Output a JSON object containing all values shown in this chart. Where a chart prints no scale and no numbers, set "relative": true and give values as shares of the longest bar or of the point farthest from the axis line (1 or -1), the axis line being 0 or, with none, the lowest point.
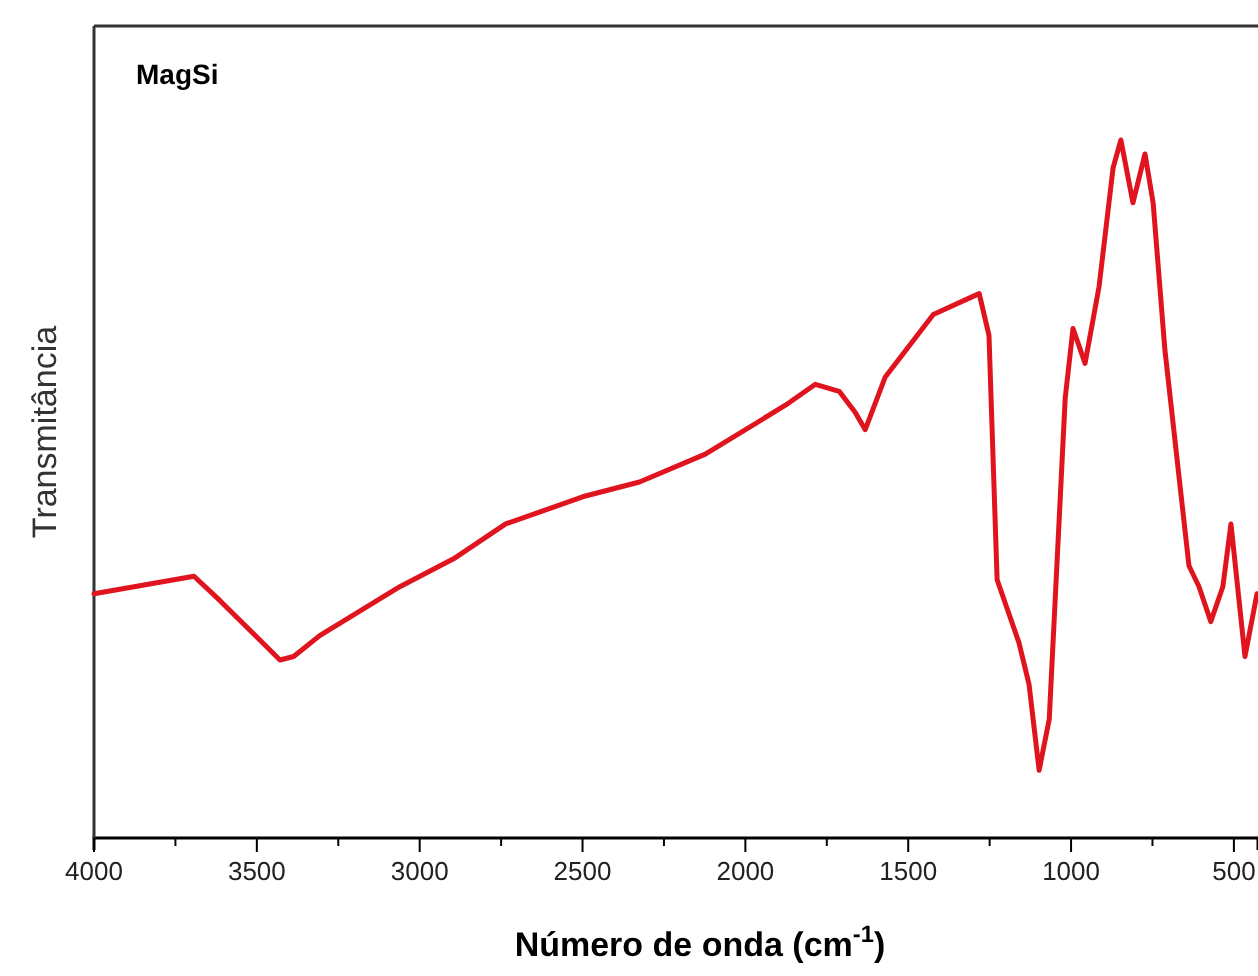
{
  "chart_data": {
    "type": "line",
    "relative": true,
    "xlabel": "Número de onda (cm$^{-1}$)",
    "ylabel": "Transmitância",
    "annotations": [
      "MagSi"
    ],
    "xlim": [
      4000,
      426
    ],
    "xticks": [
      4000,
      {
        "value": 3750,
        "label": null
      },
      3500,
      {
        "value": 3250,
        "label": null
      },
      3000,
      {
        "value": 2750,
        "label": null
      },
      2500,
      {
        "value": 2250,
        "label": null
      },
      2000,
      {
        "value": 1750,
        "label": null
      },
      1500,
      {
        "value": 1250,
        "label": null
      },
      1000,
      {
        "value": 750,
        "label": null
      },
      500
    ],
    "series": [
      {
        "color": "#e0141e",
        "x": [
          4000,
          3693,
          3613,
          3429,
          3387,
          3307,
          3061,
          2896,
          2736,
          2491,
          2325,
          2123,
          1877,
          1785,
          1712,
          1663,
          1632,
          1571,
          1423,
          1301,
          1282,
          1252,
          1227,
          1160,
          1129,
          1098,
          1067,
          1018,
          994,
          957,
          914,
          871,
          847,
          810,
          773,
          748,
          712,
          638,
          607,
          571,
          534,
          509,
          466,
          429
        ],
        "values": [
          0.35,
          0.375,
          0.34,
          0.255,
          0.26,
          0.29,
          0.36,
          0.4,
          0.45,
          0.49,
          0.51,
          0.55,
          0.62,
          0.65,
          0.64,
          0.61,
          0.585,
          0.66,
          0.75,
          0.776,
          0.78,
          0.72,
          0.37,
          0.28,
          0.22,
          0.097,
          0.17,
          0.63,
          0.73,
          0.68,
          0.79,
          0.96,
          1.0,
          0.91,
          0.98,
          0.91,
          0.7,
          0.39,
          0.36,
          0.31,
          0.36,
          0.45,
          0.26,
          0.35
        ]
      }
    ],
    "line_style": "solid",
    "grid": false
  }
}
